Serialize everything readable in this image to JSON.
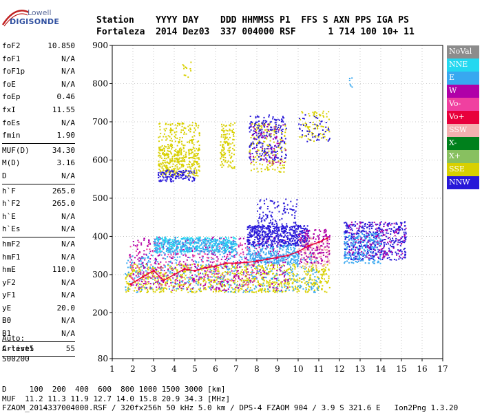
{
  "logo": {
    "line1": "Lowell",
    "line2": "DIGISONDE"
  },
  "header": {
    "line1": "Station    YYYY DAY    DDD HHMMSS P1  FFS S AXN PPS IGA PS",
    "line2": "Fortaleza  2014 Dez03  337 004000 RSF      1 714 100 10+ 11"
  },
  "sidebar": {
    "groups": [
      [
        {
          "label": "foF2",
          "value": "10.850"
        },
        {
          "label": "foF1",
          "value": "N/A"
        },
        {
          "label": "foF1p",
          "value": "N/A"
        },
        {
          "label": "foE",
          "value": "N/A"
        },
        {
          "label": "foEp",
          "value": "0.46"
        },
        {
          "label": "fxI",
          "value": "11.55"
        },
        {
          "label": "foEs",
          "value": "N/A"
        },
        {
          "label": "fmin",
          "value": "1.90"
        }
      ],
      [
        {
          "label": "MUF(D)",
          "value": "34.30"
        },
        {
          "label": "M(D)",
          "value": "3.16"
        },
        {
          "label": "D",
          "value": "N/A"
        }
      ],
      [
        {
          "label": "h`F",
          "value": "265.0"
        },
        {
          "label": "h`F2",
          "value": "265.0"
        },
        {
          "label": "h`E",
          "value": "N/A"
        },
        {
          "label": "h`Es",
          "value": "N/A"
        }
      ],
      [
        {
          "label": "hmF2",
          "value": "N/A"
        },
        {
          "label": "hmF1",
          "value": "N/A"
        },
        {
          "label": "hmE",
          "value": "110.0"
        },
        {
          "label": "yF2",
          "value": "N/A"
        },
        {
          "label": "yF1",
          "value": "N/A"
        },
        {
          "label": "yE",
          "value": "20.0"
        },
        {
          "label": "B0",
          "value": "N/A"
        },
        {
          "label": "B1",
          "value": "N/A"
        }
      ],
      [
        {
          "label": "C-level",
          "value": "55"
        }
      ]
    ]
  },
  "auto_block": {
    "line1": "Auto:",
    "line2": "Artist5",
    "line3": "500200"
  },
  "footer": {
    "line1": "D     100  200  400  600  800 1000 1500 3000 [km]",
    "line2": "MUF  11.2 11.3 11.9 12.7 14.0 15.8 20.9 34.3 [MHz]",
    "line3": "FZAOM_2014337004000.RSF / 320fx256h 50 kHz 5.0 km / DPS-4 FZAOM 904 / 3.9 S 321.6 E   Ion2Png 1.3.20"
  },
  "legend": [
    {
      "label": "NoVal",
      "color": "#8c8c8c"
    },
    {
      "label": "NNE",
      "color": "#24d8f0"
    },
    {
      "label": "E",
      "color": "#38a8f0"
    },
    {
      "label": "W",
      "color": "#b000a8"
    },
    {
      "label": "Vo-",
      "color": "#f040a0"
    },
    {
      "label": "Vo+",
      "color": "#e8003c"
    },
    {
      "label": "SSW",
      "color": "#f4b0b0"
    },
    {
      "label": "X-",
      "color": "#00801c"
    },
    {
      "label": "X+",
      "color": "#88c060"
    },
    {
      "label": "SSE",
      "color": "#d8d000"
    },
    {
      "label": "NNW",
      "color": "#2818d8"
    }
  ],
  "chart_data": {
    "type": "scatter",
    "xlim": [
      1,
      17
    ],
    "ylim": [
      80,
      900
    ],
    "x_ticks": [
      1,
      2,
      3,
      4,
      5,
      6,
      7,
      8,
      9,
      10,
      11,
      12,
      13,
      14,
      15,
      16,
      17
    ],
    "y_ticks": [
      80,
      200,
      300,
      400,
      500,
      600,
      700,
      800,
      900
    ],
    "y_tick_labels": [
      "80",
      "200",
      "300",
      "400",
      "500",
      "600",
      "700",
      "800",
      "900"
    ],
    "grid": true,
    "legend_position": "right",
    "clusters": [
      {
        "series": "SSE",
        "x": [
          1.6,
          11.5
        ],
        "y": [
          255,
          330
        ],
        "n": 900
      },
      {
        "series": "E",
        "x": [
          1.6,
          11.0
        ],
        "y": [
          255,
          360
        ],
        "n": 500
      },
      {
        "series": "W",
        "x": [
          1.8,
          9.5
        ],
        "y": [
          260,
          400
        ],
        "n": 500
      },
      {
        "series": "Vo-",
        "x": [
          1.8,
          8.0
        ],
        "y": [
          270,
          390
        ],
        "n": 200
      },
      {
        "series": "NNE",
        "x": [
          3.0,
          7.0
        ],
        "y": [
          360,
          400
        ],
        "n": 350
      },
      {
        "series": "E",
        "x": [
          3.0,
          7.0
        ],
        "y": [
          360,
          395
        ],
        "n": 250
      },
      {
        "series": "NNW",
        "x": [
          7.5,
          10.5
        ],
        "y": [
          375,
          430
        ],
        "n": 550
      },
      {
        "series": "NNW",
        "x": [
          8.0,
          10.0
        ],
        "y": [
          420,
          500
        ],
        "n": 120
      },
      {
        "series": "E",
        "x": [
          7.5,
          10.0
        ],
        "y": [
          330,
          380
        ],
        "n": 250
      },
      {
        "series": "SSW",
        "x": [
          10.0,
          11.5
        ],
        "y": [
          320,
          400
        ],
        "n": 150
      },
      {
        "series": "W",
        "x": [
          10.0,
          11.5
        ],
        "y": [
          330,
          420
        ],
        "n": 150
      },
      {
        "series": "NNW",
        "x": [
          12.2,
          15.2
        ],
        "y": [
          340,
          440
        ],
        "n": 450
      },
      {
        "series": "E",
        "x": [
          12.2,
          14.0
        ],
        "y": [
          330,
          410
        ],
        "n": 200
      },
      {
        "series": "W",
        "x": [
          12.4,
          15.2
        ],
        "y": [
          345,
          440
        ],
        "n": 120
      },
      {
        "series": "SSE",
        "x": [
          3.2,
          5.2
        ],
        "y": [
          560,
          640
        ],
        "n": 350
      },
      {
        "series": "NNW",
        "x": [
          3.2,
          5.0
        ],
        "y": [
          545,
          575
        ],
        "n": 120
      },
      {
        "series": "SSE",
        "x": [
          3.2,
          5.2
        ],
        "y": [
          640,
          700
        ],
        "n": 120
      },
      {
        "series": "SSE",
        "x": [
          6.2,
          6.9
        ],
        "y": [
          580,
          700
        ],
        "n": 120
      },
      {
        "series": "SSE",
        "x": [
          7.6,
          9.4
        ],
        "y": [
          570,
          700
        ],
        "n": 180
      },
      {
        "series": "NNW",
        "x": [
          7.6,
          9.4
        ],
        "y": [
          600,
          720
        ],
        "n": 220
      },
      {
        "series": "W",
        "x": [
          7.6,
          9.4
        ],
        "y": [
          590,
          700
        ],
        "n": 60
      },
      {
        "series": "SSE",
        "x": [
          10.0,
          11.5
        ],
        "y": [
          650,
          730
        ],
        "n": 80
      },
      {
        "series": "NNW",
        "x": [
          10.0,
          11.5
        ],
        "y": [
          650,
          720
        ],
        "n": 50
      },
      {
        "series": "SSE",
        "x": [
          4.3,
          4.8
        ],
        "y": [
          810,
          860
        ],
        "n": 12
      },
      {
        "series": "E",
        "x": [
          12.4,
          12.6
        ],
        "y": [
          780,
          820
        ],
        "n": 6
      }
    ],
    "trace": {
      "series": "Vo+",
      "x": [
        1.9,
        2.5,
        3.0,
        3.5,
        4.0,
        4.5,
        5.0,
        5.5,
        6.0,
        6.5,
        7.0,
        7.5,
        8.0,
        8.5,
        9.0,
        9.5,
        10.0,
        10.5,
        11.0,
        11.4
      ],
      "y": [
        275,
        295,
        310,
        285,
        300,
        315,
        310,
        318,
        322,
        330,
        330,
        332,
        335,
        340,
        345,
        350,
        360,
        375,
        385,
        395
      ]
    }
  }
}
